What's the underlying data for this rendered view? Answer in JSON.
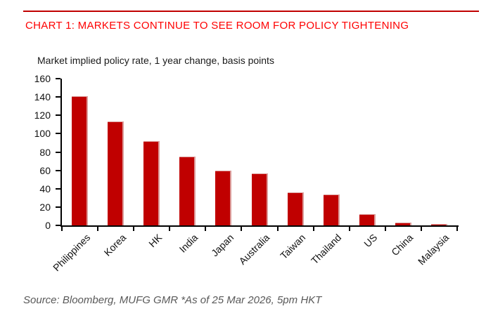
{
  "header": {
    "title": "CHART 1: MARKETS CONTINUE TO SEE ROOM FOR POLICY TIGHTENING"
  },
  "chart": {
    "subtitle": "Market implied policy rate, 1 year change, basis points"
  },
  "chart_data": {
    "type": "bar",
    "title": "CHART 1: MARKETS CONTINUE TO SEE ROOM FOR POLICY TIGHTENING",
    "subtitle": "Market implied policy rate, 1 year change, basis points",
    "categories": [
      "Philippines",
      "Korea",
      "HK",
      "India",
      "Japan",
      "Australia",
      "Taiwan",
      "Thailand",
      "US",
      "China",
      "Malaysia"
    ],
    "values": [
      141,
      113,
      92,
      75,
      60,
      57,
      36,
      34,
      12,
      3,
      1
    ],
    "xlabel": "",
    "ylabel": "basis points",
    "ylim": [
      0,
      160
    ],
    "ytick_step": 20,
    "yticks": [
      0,
      20,
      40,
      60,
      80,
      100,
      120,
      140,
      160
    ],
    "grid": false,
    "legend": false,
    "xlabel_rotation_deg": -45
  },
  "footer": {
    "source": "Source: Bloomberg, MUFG GMR *As of 25 Mar 2026, 5pm HKT"
  },
  "colors": {
    "title_red": "#fe0000",
    "rule_red": "#c00000",
    "bar_fill": "#c00000",
    "bar_edge": "#dc9c9a",
    "axis_black": "#000000",
    "source_gray": "#595959"
  }
}
